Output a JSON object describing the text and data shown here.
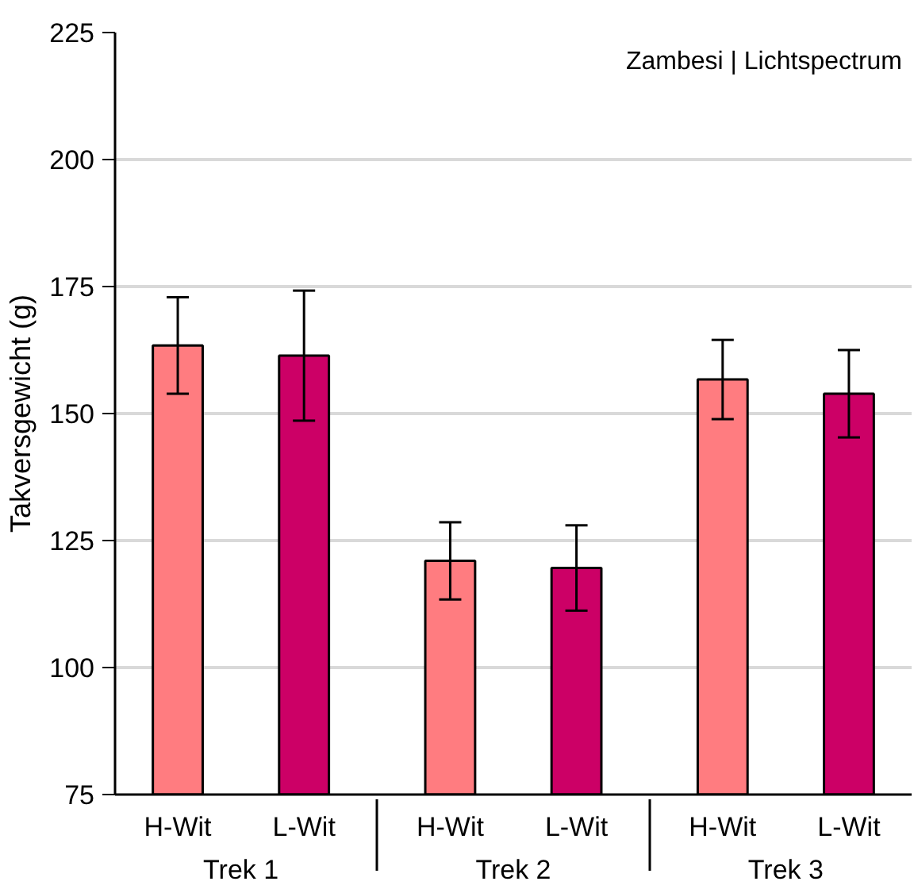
{
  "chart_data": {
    "type": "bar",
    "ylabel": "Takversgewicht (g)",
    "categories": [
      "Trek 1",
      "Trek 2",
      "Trek 3"
    ],
    "series": [
      {
        "name": "H-Wit",
        "color": "#ff7c80",
        "values": [
          163.4,
          121,
          156.7
        ],
        "errors": [
          9.5,
          7.6,
          7.8
        ]
      },
      {
        "name": "L-Wit",
        "color": "#cc0066",
        "values": [
          161.4,
          119.6,
          153.9
        ],
        "errors": [
          12.8,
          8.4,
          8.6
        ]
      }
    ],
    "ylim": [
      75,
      225
    ],
    "yticks": [
      75,
      100,
      125,
      150,
      175,
      200,
      225
    ],
    "grid": "y",
    "legend": false,
    "annotations": [
      "Zambesi | Lichtspectrum"
    ]
  }
}
